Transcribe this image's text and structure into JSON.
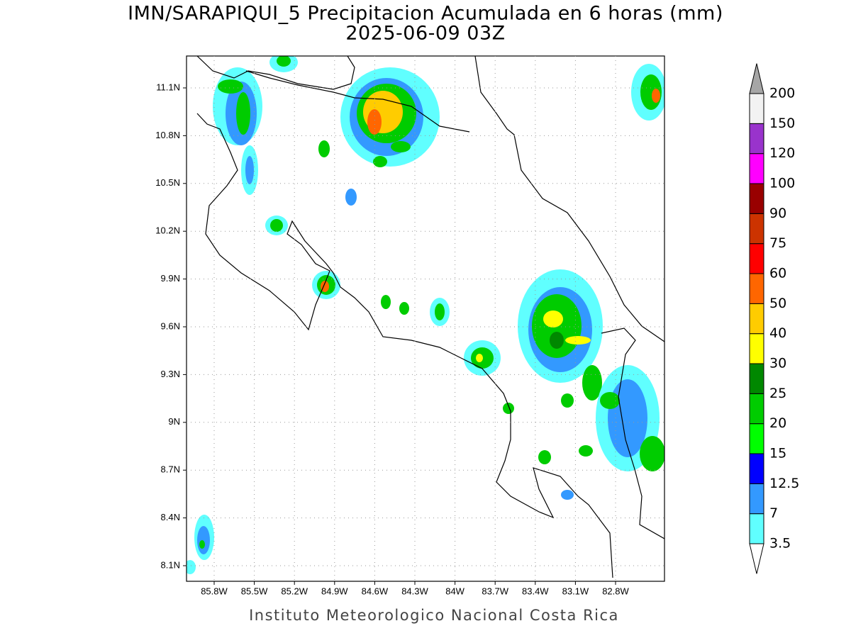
{
  "header": {
    "title": "IMN/SARAPIQUI_5 Precipitacion Acumulada en 6 horas (mm)",
    "subtitle": "2025-06-09 03Z"
  },
  "map": {
    "lat_labels": [
      "11.1N",
      "10.8N",
      "10.5N",
      "10.2N",
      "9.9N",
      "9.6N",
      "9.3N",
      "9N",
      "8.7N",
      "8.4N",
      "8.1N"
    ],
    "lon_labels": [
      "85.8W",
      "85.5W",
      "85.2W",
      "84.9W",
      "84.6W",
      "84.3W",
      "84W",
      "83.7W",
      "83.4W",
      "83.1W",
      "82.8W"
    ]
  },
  "colorbar": {
    "labels": [
      "3.5",
      "7",
      "12.5",
      "15",
      "20",
      "25",
      "30",
      "40",
      "50",
      "60",
      "75",
      "90",
      "100",
      "120",
      "150",
      "200"
    ],
    "colors": [
      "#60ffff",
      "#3399ff",
      "#0000ff",
      "#00ff00",
      "#00cc00",
      "#008800",
      "#ffff00",
      "#ffcc00",
      "#ff6600",
      "#ff0000",
      "#cc3300",
      "#990000",
      "#ff00ff",
      "#9933cc",
      "#f2f2f2"
    ],
    "below_color": "#ffffff",
    "above_color": "#a6a6a6"
  },
  "footer": "Instituto Meteorologico Nacional Costa Rica"
}
